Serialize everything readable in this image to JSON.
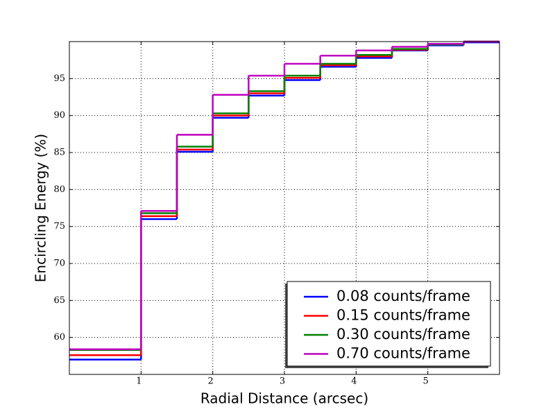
{
  "chart_data": {
    "type": "step",
    "x_label": "Radial Distance (arcsec)",
    "y_label": "Encircling Energy (%)",
    "x": [
      0,
      1,
      1.5,
      2,
      2.5,
      3,
      3.5,
      4,
      4.5,
      5,
      5.5
    ],
    "series": [
      {
        "name": "0.08 counts/frame",
        "color": "#0000ff",
        "values": [
          57.0,
          76.0,
          85.1,
          89.7,
          92.7,
          94.8,
          96.6,
          97.8,
          98.8,
          99.5,
          99.9
        ]
      },
      {
        "name": "0.15 counts/frame",
        "color": "#ff0000",
        "values": [
          57.6,
          76.4,
          85.4,
          90.0,
          93.0,
          95.1,
          96.8,
          98.0,
          98.9,
          99.6,
          100
        ]
      },
      {
        "name": "0.30 counts/frame",
        "color": "#008000",
        "values": [
          58.3,
          76.8,
          85.8,
          90.3,
          93.3,
          95.4,
          97.0,
          98.2,
          99.0,
          99.6,
          100
        ]
      },
      {
        "name": "0.70 counts/frame",
        "color": "#bf00bf",
        "values": [
          58.4,
          77.1,
          87.4,
          92.8,
          95.4,
          97.0,
          98.1,
          98.8,
          99.3,
          99.7,
          100
        ]
      }
    ],
    "xlim": [
      0,
      6
    ],
    "xticks": [
      1,
      2,
      3,
      4,
      5
    ],
    "ylim": [
      55,
      100
    ],
    "yticks": [
      60,
      65,
      70,
      75,
      80,
      85,
      90,
      95
    ],
    "grid": true,
    "legend": "lower right"
  }
}
